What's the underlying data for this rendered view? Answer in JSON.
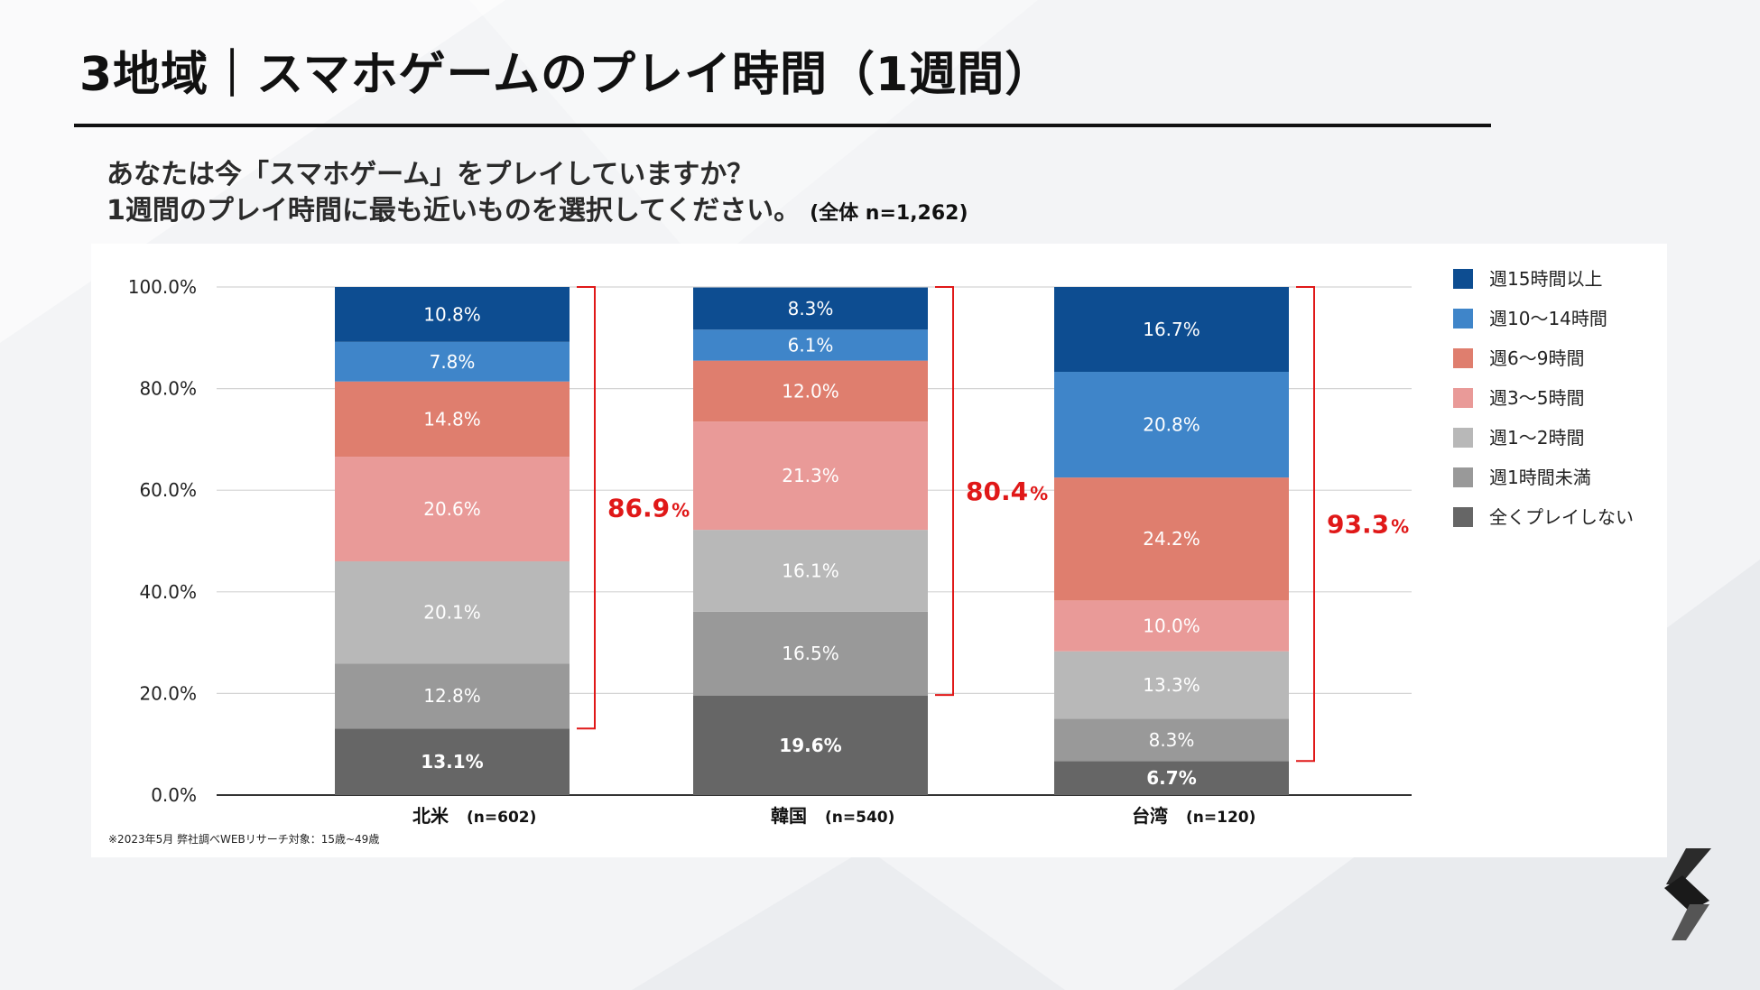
{
  "header": {
    "title": "3地域｜スマホゲームのプレイ時間（1週間）"
  },
  "question": {
    "line1": "あなたは今「スマホゲーム」をプレイしていますか？",
    "line2": "1週間のプレイ時間に最も近いものを選択してください。",
    "sample": "(全体 n=1,262)"
  },
  "footnote": "※2023年5月 弊社調べWEBリサーチ対象：15歳~49歳",
  "chart_data": {
    "type": "bar",
    "stacked": true,
    "title": "",
    "xlabel": "",
    "ylabel": "",
    "ylim": [
      0,
      100
    ],
    "y_ticks": [
      "0.0%",
      "20.0%",
      "40.0%",
      "60.0%",
      "80.0%",
      "100.0%"
    ],
    "categories": [
      "北米",
      "韓国",
      "台湾"
    ],
    "category_n": [
      "(n=602)",
      "(n=540)",
      "(n=120)"
    ],
    "series": [
      {
        "name": "全くプレイしない",
        "color": "#666666",
        "label_color": "#ffffff",
        "bold": true,
        "values": [
          13.1,
          19.6,
          6.7
        ],
        "labels": [
          "13.1%",
          "19.6%",
          "6.7%"
        ]
      },
      {
        "name": "週1時間未満",
        "color": "#999999",
        "label_color": "#ffffff",
        "bold": false,
        "values": [
          12.8,
          16.5,
          8.3
        ],
        "labels": [
          "12.8%",
          "16.5%",
          "8.3%"
        ]
      },
      {
        "name": "週1〜2時間",
        "color": "#b8b8b8",
        "label_color": "#ffffff",
        "bold": false,
        "values": [
          20.1,
          16.1,
          13.3
        ],
        "labels": [
          "20.1%",
          "16.1%",
          "13.3%"
        ]
      },
      {
        "name": "週3〜5時間",
        "color": "#e99a98",
        "label_color": "#ffffff",
        "bold": false,
        "values": [
          20.6,
          21.3,
          10.0
        ],
        "labels": [
          "20.6%",
          "21.3%",
          "10.0%"
        ]
      },
      {
        "name": "週6〜9時間",
        "color": "#df7e6e",
        "label_color": "#ffffff",
        "bold": false,
        "values": [
          14.8,
          12.0,
          24.2
        ],
        "labels": [
          "14.8%",
          "12.0%",
          "24.2%"
        ]
      },
      {
        "name": "週10〜14時間",
        "color": "#3f85c9",
        "label_color": "#ffffff",
        "bold": false,
        "values": [
          7.8,
          6.1,
          20.8
        ],
        "labels": [
          "7.8%",
          "6.1%",
          "20.8%"
        ]
      },
      {
        "name": "週15時間以上",
        "color": "#0d4d91",
        "label_color": "#ffffff",
        "bold": false,
        "values": [
          10.8,
          8.3,
          16.7
        ],
        "labels": [
          "10.8%",
          "8.3%",
          "16.7%"
        ]
      }
    ],
    "legend_order": [
      "週15時間以上",
      "週10〜14時間",
      "週6〜9時間",
      "週3〜5時間",
      "週1〜2時間",
      "週1時間未満",
      "全くプレイしない"
    ],
    "legend_position": "right",
    "annotations": {
      "bracket_color": "#e01818",
      "totals": [
        {
          "category": "北米",
          "value": "86.9",
          "unit": "%"
        },
        {
          "category": "韓国",
          "value": "80.4",
          "unit": "%"
        },
        {
          "category": "台湾",
          "value": "93.3",
          "unit": "%"
        }
      ]
    }
  }
}
